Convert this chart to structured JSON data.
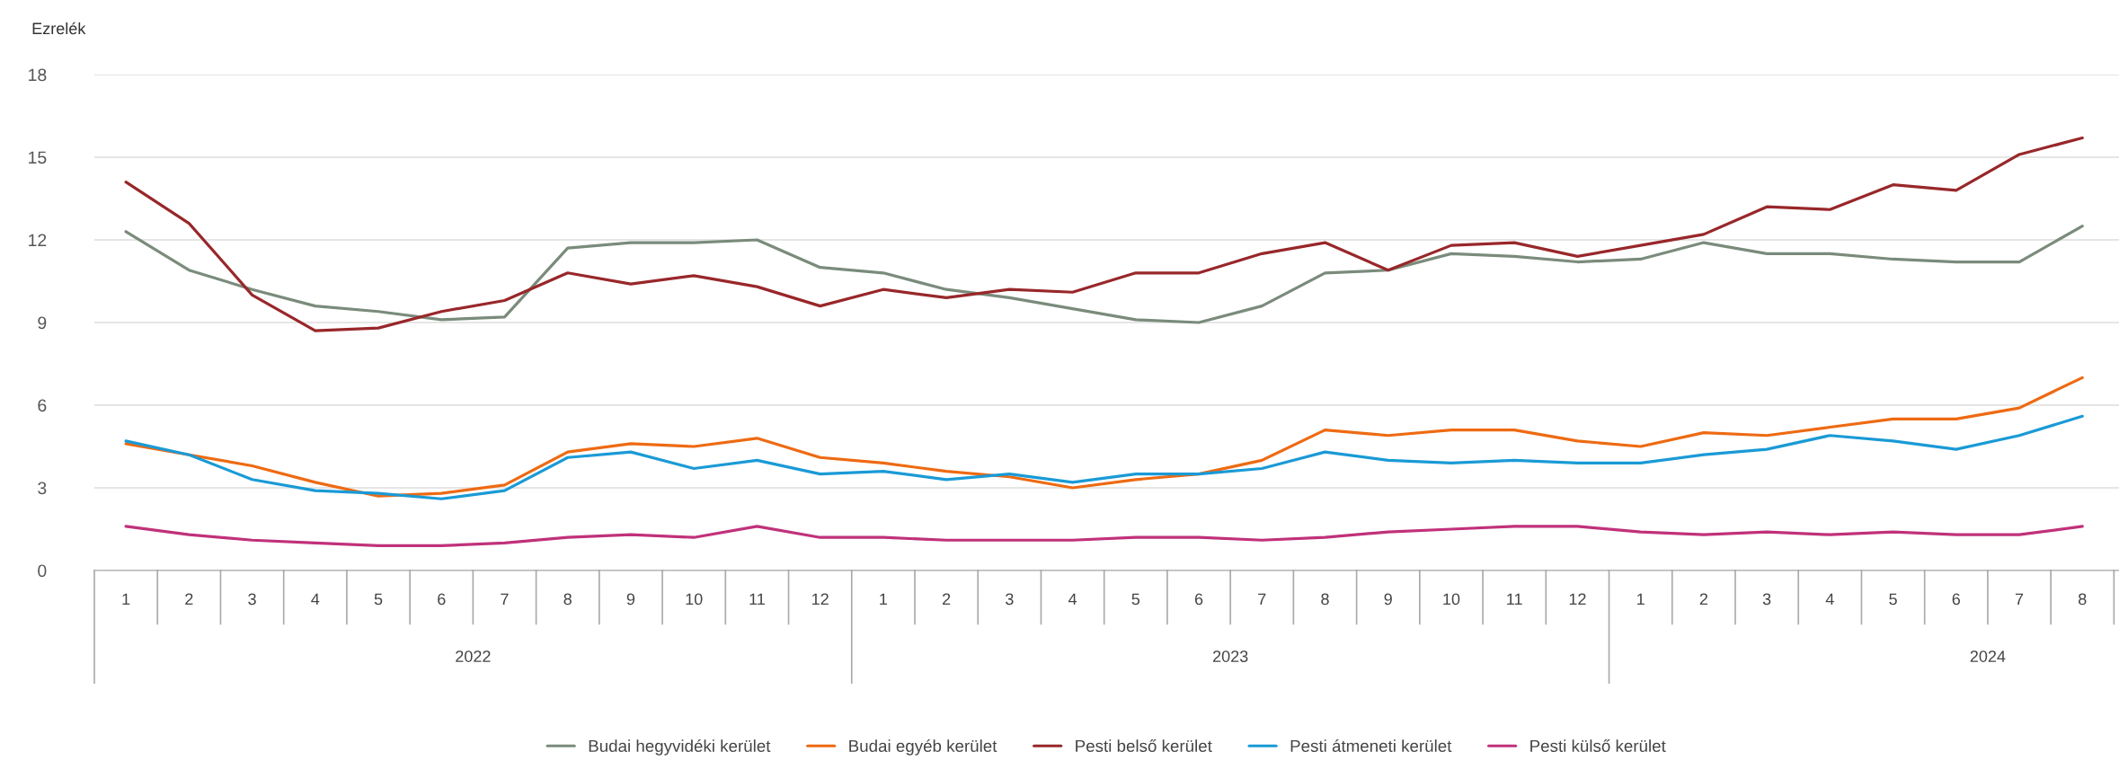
{
  "chart_data": {
    "type": "line",
    "ylabel": "Ezrelék",
    "categories": [
      "1",
      "2",
      "3",
      "4",
      "5",
      "6",
      "7",
      "8",
      "9",
      "10",
      "11",
      "12",
      "1",
      "2",
      "3",
      "4",
      "5",
      "6",
      "7",
      "8",
      "9",
      "10",
      "11",
      "12",
      "1",
      "2",
      "3",
      "4",
      "5",
      "6",
      "7",
      "8"
    ],
    "annotations": [
      "2022",
      "2023",
      "2024"
    ],
    "series": [
      {
        "name": "Budai hegyvidéki kerület",
        "color": "#7a8b7b",
        "values": [
          12.3,
          10.9,
          10.2,
          9.6,
          9.4,
          9.1,
          9.2,
          11.7,
          11.9,
          11.9,
          12.0,
          11.0,
          10.8,
          10.2,
          9.9,
          9.5,
          9.1,
          9.0,
          9.6,
          10.8,
          10.9,
          11.5,
          11.4,
          11.2,
          11.3,
          11.9,
          11.5,
          11.5,
          11.3,
          11.2,
          11.2,
          12.5
        ]
      },
      {
        "name": "Budai egyéb kerület",
        "color": "#ee6a12",
        "values": [
          4.6,
          4.2,
          3.8,
          3.2,
          2.7,
          2.8,
          3.1,
          4.3,
          4.6,
          4.5,
          4.8,
          4.1,
          3.9,
          3.6,
          3.4,
          3.0,
          3.3,
          3.5,
          4.0,
          5.1,
          4.9,
          5.1,
          5.1,
          4.7,
          4.5,
          5.0,
          4.9,
          5.2,
          5.5,
          5.5,
          5.9,
          7.0
        ]
      },
      {
        "name": "Pesti belső kerület",
        "color": "#98272a",
        "values": [
          14.1,
          12.6,
          10.0,
          8.7,
          8.8,
          9.4,
          9.8,
          10.8,
          10.4,
          10.7,
          10.3,
          9.6,
          10.2,
          9.9,
          10.2,
          10.1,
          10.8,
          10.8,
          11.5,
          11.9,
          10.9,
          11.8,
          11.9,
          11.4,
          11.8,
          12.2,
          13.2,
          13.1,
          14.0,
          13.8,
          15.1,
          15.7
        ]
      },
      {
        "name": "Pesti átmeneti kerület",
        "color": "#1a9ad6",
        "values": [
          4.7,
          4.2,
          3.3,
          2.9,
          2.8,
          2.6,
          2.9,
          4.1,
          4.3,
          3.7,
          4.0,
          3.5,
          3.6,
          3.3,
          3.5,
          3.2,
          3.5,
          3.5,
          3.7,
          4.3,
          4.0,
          3.9,
          4.0,
          3.9,
          3.9,
          4.2,
          4.4,
          4.9,
          4.7,
          4.4,
          4.9,
          5.6
        ]
      },
      {
        "name": "Pesti külső kerület",
        "color": "#c0317a",
        "values": [
          1.6,
          1.3,
          1.1,
          1.0,
          0.9,
          0.9,
          1.0,
          1.2,
          1.3,
          1.2,
          1.6,
          1.2,
          1.2,
          1.1,
          1.1,
          1.1,
          1.2,
          1.2,
          1.1,
          1.2,
          1.4,
          1.5,
          1.6,
          1.6,
          1.4,
          1.3,
          1.4,
          1.3,
          1.4,
          1.3,
          1.3,
          1.6
        ]
      }
    ],
    "ylim": [
      0,
      18
    ],
    "yticks": [
      0,
      3,
      6,
      9,
      12,
      15,
      18
    ],
    "grid": "y",
    "legend": "bottom",
    "marker": "none",
    "line_style": "solid"
  }
}
